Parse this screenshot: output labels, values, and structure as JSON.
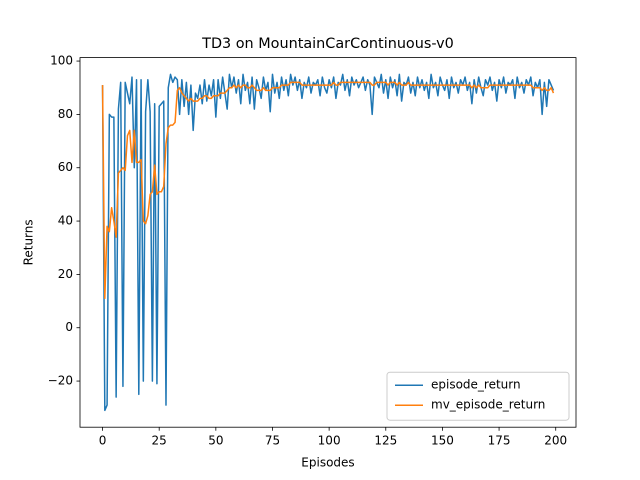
{
  "chart_data": {
    "type": "line",
    "title": "TD3 on MountainCarContinuous-v0",
    "x_label": "Episodes",
    "y_label": "Returns",
    "x": [
      0,
      1,
      2,
      3,
      4,
      5,
      6,
      7,
      8,
      9,
      10,
      11,
      12,
      13,
      14,
      15,
      16,
      17,
      18,
      19,
      20,
      21,
      22,
      23,
      24,
      25,
      26,
      27,
      28,
      29,
      30,
      31,
      32,
      33,
      34,
      35,
      36,
      37,
      38,
      39,
      40,
      41,
      42,
      43,
      44,
      45,
      46,
      47,
      48,
      49,
      50,
      51,
      52,
      53,
      54,
      55,
      56,
      57,
      58,
      59,
      60,
      61,
      62,
      63,
      64,
      65,
      66,
      67,
      68,
      69,
      70,
      71,
      72,
      73,
      74,
      75,
      76,
      77,
      78,
      79,
      80,
      81,
      82,
      83,
      84,
      85,
      86,
      87,
      88,
      89,
      90,
      91,
      92,
      93,
      94,
      95,
      96,
      97,
      98,
      99,
      100,
      101,
      102,
      103,
      104,
      105,
      106,
      107,
      108,
      109,
      110,
      111,
      112,
      113,
      114,
      115,
      116,
      117,
      118,
      119,
      120,
      121,
      122,
      123,
      124,
      125,
      126,
      127,
      128,
      129,
      130,
      131,
      132,
      133,
      134,
      135,
      136,
      137,
      138,
      139,
      140,
      141,
      142,
      143,
      144,
      145,
      146,
      147,
      148,
      149,
      150,
      151,
      152,
      153,
      154,
      155,
      156,
      157,
      158,
      159,
      160,
      161,
      162,
      163,
      164,
      165,
      166,
      167,
      168,
      169,
      170,
      171,
      172,
      173,
      174,
      175,
      176,
      177,
      178,
      179,
      180,
      181,
      182,
      183,
      184,
      185,
      186,
      187,
      188,
      189,
      190,
      191,
      192,
      193,
      194,
      195,
      196,
      197,
      198,
      199
    ],
    "series": [
      {
        "name": "episode_return",
        "color": "#1f77b4",
        "values": [
          91,
          -31,
          -29,
          80,
          79,
          79,
          -26,
          82,
          92,
          -22,
          92,
          88,
          84,
          94,
          60,
          93,
          -25,
          93,
          -20,
          81,
          93,
          81,
          -20,
          84,
          -21,
          83,
          84,
          85,
          -29,
          90,
          95,
          92,
          94,
          93,
          80,
          93,
          83,
          92,
          80,
          91,
          74,
          88,
          86,
          91,
          84,
          93,
          85,
          91,
          87,
          93,
          79,
          93,
          86,
          94,
          88,
          82,
          95,
          90,
          94,
          88,
          93,
          84,
          95,
          89,
          92,
          84,
          94,
          82,
          93,
          90,
          86,
          94,
          89,
          92,
          81,
          95,
          88,
          92,
          86,
          94,
          89,
          93,
          87,
          95,
          91,
          94,
          89,
          93,
          86,
          92,
          90,
          94,
          88,
          92,
          91,
          93,
          87,
          94,
          90,
          88,
          93,
          90,
          94,
          86,
          92,
          91,
          95,
          89,
          93,
          87,
          94,
          91,
          93,
          90,
          92,
          94,
          89,
          93,
          91,
          80,
          94,
          92,
          90,
          95,
          88,
          93,
          86,
          94,
          90,
          93,
          87,
          95,
          85,
          92,
          91,
          94,
          88,
          92,
          87,
          94,
          90,
          93,
          89,
          92,
          86,
          95,
          90,
          92,
          87,
          94,
          91,
          89,
          93,
          86,
          94,
          90,
          92,
          88,
          93,
          91,
          94,
          89,
          92,
          84,
          93,
          88,
          94,
          90,
          87,
          93,
          91,
          94,
          89,
          92,
          85,
          93,
          90,
          94,
          88,
          92,
          91,
          93,
          86,
          94,
          90,
          92,
          88,
          93,
          91,
          94,
          87,
          92,
          90,
          93,
          80,
          92,
          83,
          93,
          91,
          89
        ]
      },
      {
        "name": "mv_episode_return",
        "color": "#ff7f0e",
        "values": [
          91,
          11,
          38,
          36,
          45,
          40,
          34,
          58,
          59,
          60,
          59,
          72,
          74,
          62,
          74,
          62,
          62,
          63,
          40,
          39,
          42,
          50,
          51,
          61,
          50,
          51,
          51,
          53,
          69,
          75,
          76,
          76,
          77,
          89,
          90,
          88,
          87,
          86,
          85,
          86,
          85,
          85,
          85,
          86,
          86,
          87,
          87,
          86,
          86,
          87,
          87,
          87,
          88,
          88,
          88,
          89,
          90,
          90,
          91,
          90,
          91,
          90,
          91,
          91,
          90,
          90,
          91,
          90,
          89,
          89,
          89,
          90,
          89,
          89,
          89,
          90,
          90,
          90,
          90,
          91,
          91,
          91,
          91,
          92,
          92,
          92,
          92,
          92,
          91,
          91,
          91,
          91,
          91,
          91,
          91,
          91,
          91,
          91,
          91,
          91,
          91,
          91,
          92,
          91,
          91,
          92,
          92,
          92,
          92,
          92,
          92,
          92,
          92,
          92,
          92,
          92,
          92,
          92,
          92,
          91,
          91,
          92,
          92,
          92,
          92,
          92,
          91,
          92,
          92,
          92,
          91,
          92,
          91,
          91,
          91,
          92,
          91,
          91,
          91,
          91,
          91,
          91,
          91,
          91,
          91,
          91,
          91,
          91,
          91,
          91,
          91,
          91,
          91,
          91,
          91,
          91,
          91,
          91,
          91,
          91,
          91,
          91,
          91,
          90,
          91,
          90,
          91,
          90,
          90,
          90,
          90,
          91,
          91,
          91,
          91,
          91,
          91,
          91,
          91,
          91,
          91,
          91,
          91,
          91,
          91,
          91,
          91,
          91,
          91,
          91,
          90,
          90,
          90,
          90,
          89,
          90,
          89,
          89,
          90,
          88
        ]
      }
    ],
    "xlim": [
      -9.95,
      208.95
    ],
    "ylim": [
      -37.3,
      101.3
    ],
    "xticks": [
      0,
      25,
      50,
      75,
      100,
      125,
      150,
      175,
      200
    ],
    "yticks": [
      {
        "value": -20,
        "label": "−20"
      },
      0,
      20,
      40,
      60,
      80,
      100
    ],
    "legend": "lower right"
  }
}
